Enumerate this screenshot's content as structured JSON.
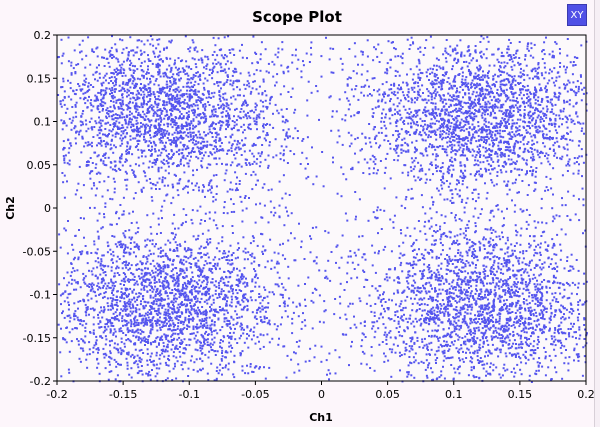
{
  "window": {
    "mode_badge": "XY"
  },
  "colors": {
    "background": "#fdf6fb",
    "plot_background": "#fcf9fb",
    "points": "#5555ee",
    "axis": "#000000"
  },
  "icons": {
    "mode": "xy-mode-icon"
  },
  "chart_data": {
    "type": "scatter",
    "title": "Scope Plot",
    "xlabel": "Ch1",
    "ylabel": "Ch2",
    "xlim": [
      -0.2,
      0.2
    ],
    "ylim": [
      -0.2,
      0.2
    ],
    "x_ticks": [
      -0.2,
      -0.15,
      -0.1,
      -0.05,
      0,
      0.05,
      0.1,
      0.15,
      0.2
    ],
    "y_ticks": [
      -0.2,
      -0.15,
      -0.1,
      -0.05,
      0,
      0.05,
      0.1,
      0.15,
      0.2
    ],
    "x_tick_labels": [
      "-0.2",
      "-0.15",
      "-0.1",
      "-0.05",
      "0",
      "0.05",
      "0.1",
      "0.15",
      "0.2"
    ],
    "y_tick_labels": [
      "-0.2",
      "-0.15",
      "-0.1",
      "-0.05",
      "0",
      "0.05",
      "0.1",
      "0.15",
      "0.2"
    ],
    "grid": false,
    "clusters": [
      {
        "center": [
          -0.12,
          0.11
        ],
        "spread": 0.045
      },
      {
        "center": [
          0.12,
          0.11
        ],
        "spread": 0.045
      },
      {
        "center": [
          -0.12,
          -0.11
        ],
        "spread": 0.045
      },
      {
        "center": [
          0.12,
          -0.11
        ],
        "spread": 0.045
      }
    ]
  }
}
